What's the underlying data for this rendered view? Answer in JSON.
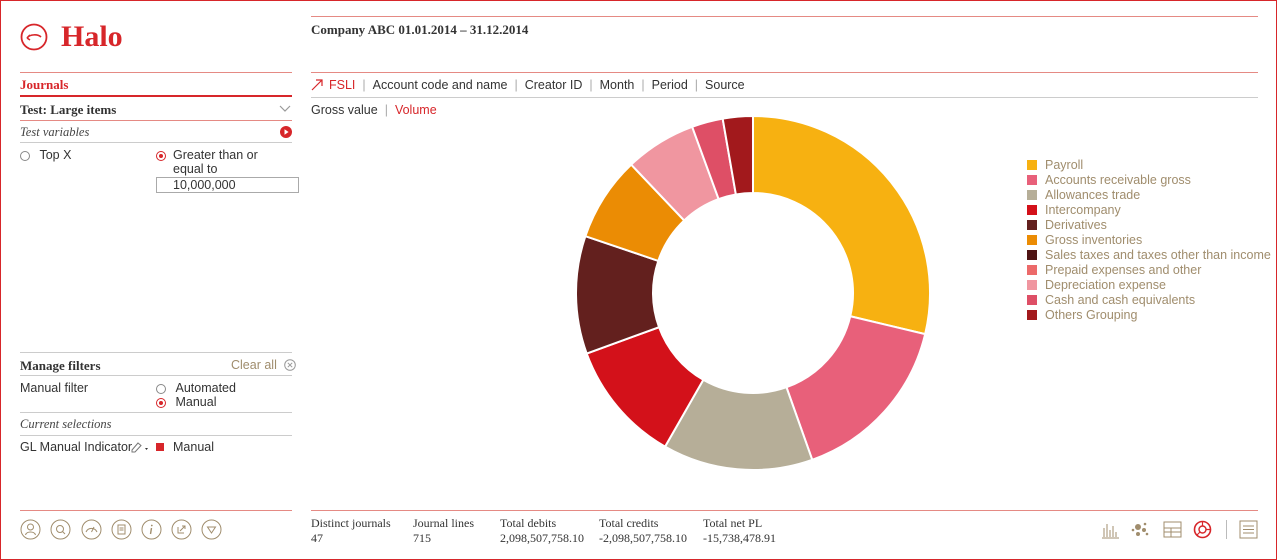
{
  "app": {
    "name": "Halo",
    "title": "Company ABC 01.01.2014 – 31.12.2014"
  },
  "left": {
    "section": "Journals",
    "test_select": "Test: Large items",
    "test_variables": "Test variables",
    "options": {
      "top_x": "Top X",
      "greater": "Greater than or equal to"
    },
    "threshold_value": "10,000,000",
    "manage_filters": "Manage filters",
    "clear_all": "Clear all",
    "manual_filter": "Manual filter",
    "filter_options": {
      "automated": "Automated",
      "manual": "Manual"
    },
    "current_selections": "Current selections",
    "selection": {
      "field": "GL Manual Indicator",
      "value": "Manual"
    }
  },
  "tabs": [
    "FSLI",
    "Account code and name",
    "Creator ID",
    "Month",
    "Period",
    "Source"
  ],
  "subtabs": [
    "Gross value",
    "Volume"
  ],
  "footer": {
    "stats": [
      {
        "label": "Distinct journals",
        "value": "47"
      },
      {
        "label": "Journal lines",
        "value": "715"
      },
      {
        "label": "Total debits",
        "value": "2,098,507,758.10"
      },
      {
        "label": "Total credits",
        "value": "-2,098,507,758.10"
      },
      {
        "label": "Total net PL",
        "value": "-15,738,478.91"
      }
    ]
  },
  "colors": {
    "accent": "#d7262a"
  },
  "chart_data": {
    "type": "pie",
    "donut": true,
    "legend": "right",
    "series": [
      {
        "name": "Payroll",
        "value": 28.3,
        "color": "#F7B111"
      },
      {
        "name": "Accounts receivable gross",
        "value": 15.6,
        "color": "#E8607A"
      },
      {
        "name": "Allowances trade",
        "value": 13.5,
        "color": "#B6AE98"
      },
      {
        "name": "Intercompany",
        "value": 11.0,
        "color": "#D3111A"
      },
      {
        "name": "Derivatives",
        "value": 10.6,
        "color": "#63201E"
      },
      {
        "name": "Gross inventories",
        "value": 7.6,
        "color": "#EB8C04"
      },
      {
        "name": "Sales taxes and taxes other than income",
        "value": 0,
        "color": "#4F1414"
      },
      {
        "name": "Prepaid expenses and other",
        "value": 0,
        "color": "#EC6A6A"
      },
      {
        "name": "Depreciation expense",
        "value": 6.4,
        "color": "#F096A0"
      },
      {
        "name": "Cash and cash equivalents",
        "value": 2.8,
        "color": "#DE4F66"
      },
      {
        "name": "Others Grouping",
        "value": 2.7,
        "color": "#A2191C"
      }
    ]
  }
}
